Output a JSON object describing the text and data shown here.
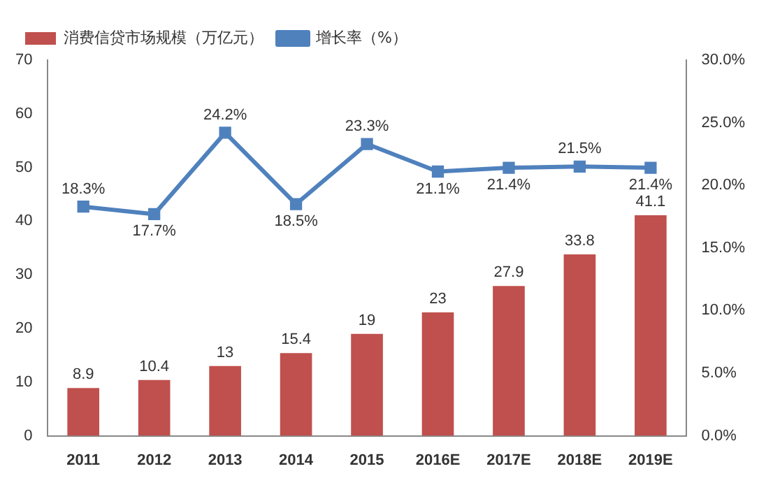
{
  "chart_data": {
    "type": "bar",
    "categories": [
      "2011",
      "2012",
      "2013",
      "2014",
      "2015",
      "2016E",
      "2017E",
      "2018E",
      "2019E"
    ],
    "series": [
      {
        "name": "消费信贷市场规模（万亿元）",
        "color": "#c0504d",
        "values": [
          8.9,
          10.4,
          13,
          15.4,
          19,
          23,
          27.9,
          33.8,
          41.1
        ],
        "value_labels": [
          "8.9",
          "10.4",
          "13",
          "15.4",
          "19",
          "23",
          "27.9",
          "33.8",
          "41.1"
        ]
      },
      {
        "name": "增长率（%）",
        "type": "line",
        "axis": "y2",
        "color": "#4f81bd",
        "marker": "square",
        "values": [
          18.3,
          17.7,
          24.2,
          18.5,
          23.3,
          21.1,
          21.4,
          21.5,
          21.4
        ],
        "value_labels": [
          "18.3%",
          "17.7%",
          "24.2%",
          "18.5%",
          "23.3%",
          "21.1%",
          "21.4%",
          "21.5%",
          "21.4%"
        ]
      }
    ],
    "ylim": [
      0,
      70
    ],
    "yticks": [
      0,
      10,
      20,
      30,
      40,
      50,
      60,
      70
    ],
    "y2lim": [
      0,
      30
    ],
    "y2ticks": [
      {
        "value": 0,
        "label": "0.0%"
      },
      {
        "value": 5,
        "label": "5.0%"
      },
      {
        "value": 10,
        "label": "10.0%"
      },
      {
        "value": 15,
        "label": "15.0%"
      },
      {
        "value": 20,
        "label": "20.0%"
      },
      {
        "value": 25,
        "label": "25.0%"
      },
      {
        "value": 30,
        "label": "30.0%"
      }
    ],
    "grid": false,
    "legend": "top left"
  }
}
